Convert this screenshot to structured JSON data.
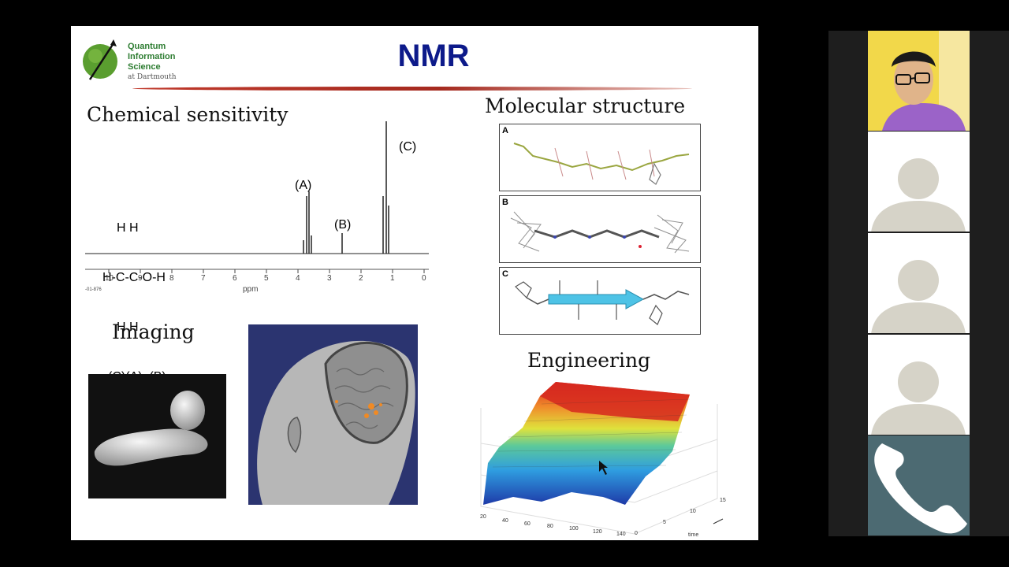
{
  "slide": {
    "logo": {
      "line1": "Quantum",
      "line2": "Information",
      "line3": "Science",
      "line4": "at Dartmouth",
      "color": "#2e7d32"
    },
    "title": "NMR",
    "title_color": "#0d1a8a",
    "rule_color": "#b22a1e",
    "sections": {
      "chemical": "Chemical sensitivity",
      "molecular": "Molecular structure",
      "imaging": "Imaging",
      "engineering": "Engineering"
    },
    "spectrum": {
      "peak_labels": [
        "(A)",
        "(B)",
        "(C)"
      ],
      "formula_rows": [
        "H H",
        "H-C-C-O-H",
        "H H"
      ],
      "formula_labels": "(C)(A)  (B)",
      "ticks": [
        "10",
        "9",
        "8",
        "7",
        "6",
        "5",
        "4",
        "3",
        "2",
        "1",
        "0"
      ],
      "axis_label": "ppm",
      "corner_note": "-01-876"
    },
    "structure_panels": [
      "A",
      "B",
      "C"
    ],
    "surface_plot": {
      "x_ticks": [
        "20",
        "40",
        "60",
        "80",
        "100",
        "120",
        "140"
      ],
      "y_ticks": [
        "0",
        "5",
        "10",
        "15"
      ],
      "y_label": "time"
    }
  },
  "participants": [
    {
      "type": "camera"
    },
    {
      "type": "avatar"
    },
    {
      "type": "avatar"
    },
    {
      "type": "avatar"
    },
    {
      "type": "call-button"
    }
  ]
}
